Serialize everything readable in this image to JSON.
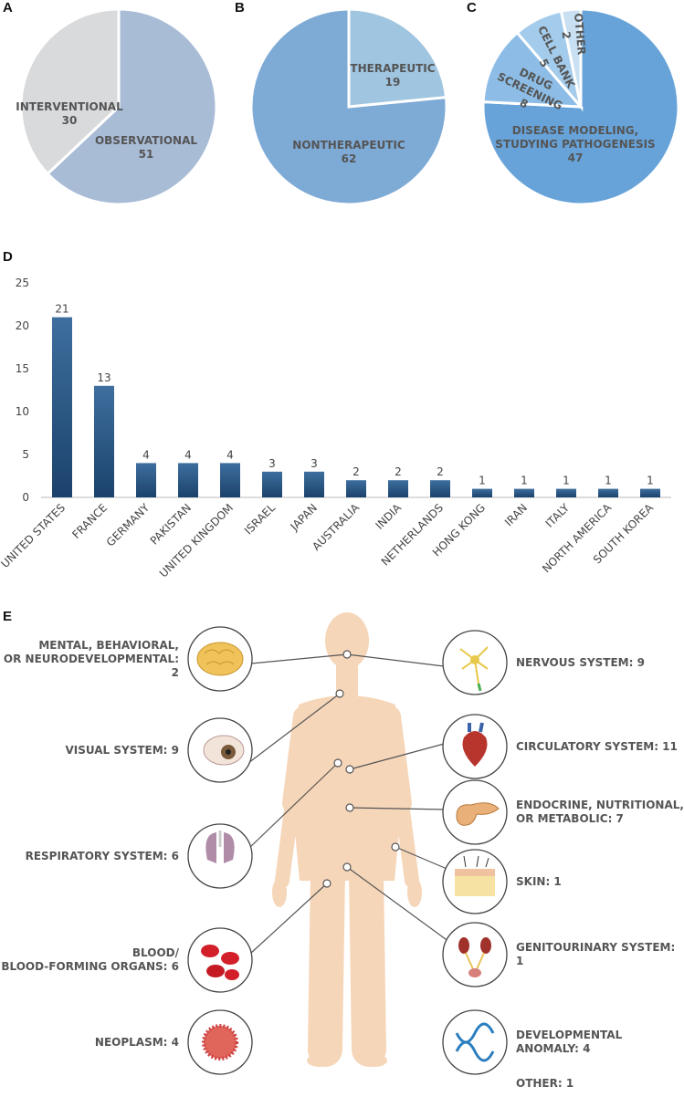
{
  "chart_data": [
    {
      "type": "pie",
      "label": "A",
      "categories": [
        "OBSERVATIONAL",
        "INTERVENTIONAL"
      ],
      "values": [
        51,
        30
      ],
      "colors": [
        "#a9bcd6",
        "#d9dadc"
      ]
    },
    {
      "type": "pie",
      "label": "B",
      "categories": [
        "THERAPEUTIC",
        "NONTHERAPEUTIC"
      ],
      "values": [
        19,
        62
      ],
      "colors": [
        "#9fc5e0",
        "#7eaad6"
      ]
    },
    {
      "type": "pie",
      "label": "C",
      "categories": [
        "DISEASE MODELING,\nSTUDYING PATHOGENESIS",
        "DRUG\nSCREENING",
        "CELL BANK",
        "OTHER"
      ],
      "values": [
        47,
        8,
        5,
        2
      ],
      "colors": [
        "#67a3d9",
        "#8dbde6",
        "#a3cbeb",
        "#c9e0f3"
      ]
    },
    {
      "type": "bar",
      "label": "D",
      "categories": [
        "UNITED STATES",
        "FRANCE",
        "GERMANY",
        "PAKISTAN",
        "UNITED KINGDOM",
        "ISRAEL",
        "JAPAN",
        "AUSTRALIA",
        "INDIA",
        "NETHERLANDS",
        "HONG KONG",
        "IRAN",
        "ITALY",
        "NORTH AMERICA",
        "SOUTH KOREA"
      ],
      "values": [
        21,
        13,
        4,
        4,
        4,
        3,
        3,
        2,
        2,
        2,
        1,
        1,
        1,
        1,
        1
      ],
      "color": "#2b5b8a",
      "ylim": [
        0,
        25
      ],
      "yticks": [
        0,
        5,
        10,
        15,
        20,
        25
      ]
    }
  ],
  "diagram": {
    "label": "E",
    "left": [
      "MENTAL, BEHAVIORAL,\nOR NEURODEVELOPMENTAL: 2",
      "VISUAL SYSTEM: 9",
      "RESPIRATORY SYSTEM: 6",
      "BLOOD/\nBLOOD-FORMING ORGANS: 6",
      "NEOPLASM: 4"
    ],
    "right": [
      "NERVOUS SYSTEM: 9",
      "CIRCULATORY SYSTEM: 11",
      "ENDOCRINE, NUTRITIONAL,\nOR METABOLIC: 7",
      "SKIN: 1",
      "GENITOURINARY SYSTEM: 1",
      "DEVELOPMENTAL ANOMALY: 4"
    ],
    "other": "OTHER: 1"
  }
}
